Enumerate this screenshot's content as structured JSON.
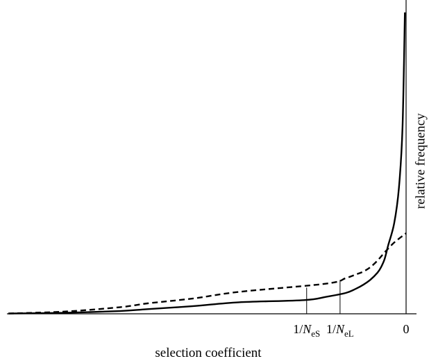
{
  "chart_data": {
    "type": "line",
    "title": "",
    "xlabel": "selection coefficient",
    "ylabel": "relative frequency",
    "x_direction": "negative values to the left, 0 at the right end",
    "y_scale": "relative, no numeric ticks",
    "grid": false,
    "legend": "none",
    "series": [
      {
        "style": "solid",
        "color": "#000000",
        "description_of_shape": "exponentially distributed effects; rises steeply near 0",
        "points": [
          [
            -1.0,
            0.005
          ],
          [
            -0.8,
            0.018
          ],
          [
            -0.6,
            0.05
          ],
          [
            -0.5,
            0.085
          ],
          [
            -0.4,
            0.14
          ],
          [
            -0.3,
            0.21
          ],
          [
            -0.25,
            0.25
          ],
          [
            -0.2,
            0.31
          ],
          [
            -0.15,
            0.38
          ],
          [
            -0.12,
            0.46
          ],
          [
            -0.1,
            0.53
          ],
          [
            -0.08,
            0.62
          ],
          [
            -0.06,
            0.75
          ],
          [
            -0.05,
            0.85
          ],
          [
            -0.04,
            1.0
          ],
          [
            -0.03,
            1.25
          ],
          [
            -0.02,
            1.65
          ],
          [
            -0.012,
            2.3
          ],
          [
            -0.006,
            3.4
          ],
          [
            -0.002,
            5.5
          ]
        ]
      },
      {
        "style": "dashed",
        "color": "#000000",
        "description_of_shape": "gamma-like distribution; smoother rise toward 0",
        "points": [
          [
            -1.0,
            0.005
          ],
          [
            -0.8,
            0.04
          ],
          [
            -0.6,
            0.12
          ],
          [
            -0.5,
            0.19
          ],
          [
            -0.4,
            0.28
          ],
          [
            -0.3,
            0.4
          ],
          [
            -0.2,
            0.55
          ],
          [
            -0.15,
            0.65
          ],
          [
            -0.12,
            0.72
          ],
          [
            -0.1,
            0.77
          ],
          [
            -0.08,
            0.85
          ],
          [
            -0.06,
            0.97
          ],
          [
            -0.04,
            1.12
          ],
          [
            -0.02,
            1.3
          ],
          [
            0.0,
            1.47
          ]
        ]
      }
    ],
    "x_ticks": [
      {
        "value": -0.248,
        "main": "1/",
        "italic": "N",
        "sub": "eS"
      },
      {
        "value": -0.166,
        "main": "1/",
        "italic": "N",
        "sub": "eL"
      },
      {
        "value": 0.0,
        "main": "0",
        "italic": "",
        "sub": ""
      }
    ],
    "annotations": [
      {
        "type": "vertical_line",
        "x": -0.248,
        "label_ref": "1/NeS"
      },
      {
        "type": "vertical_line",
        "x": -0.166,
        "label_ref": "1/NeL"
      }
    ],
    "xlim": [
      -1.0,
      0.0
    ],
    "ylim": [
      0,
      5.6
    ]
  }
}
